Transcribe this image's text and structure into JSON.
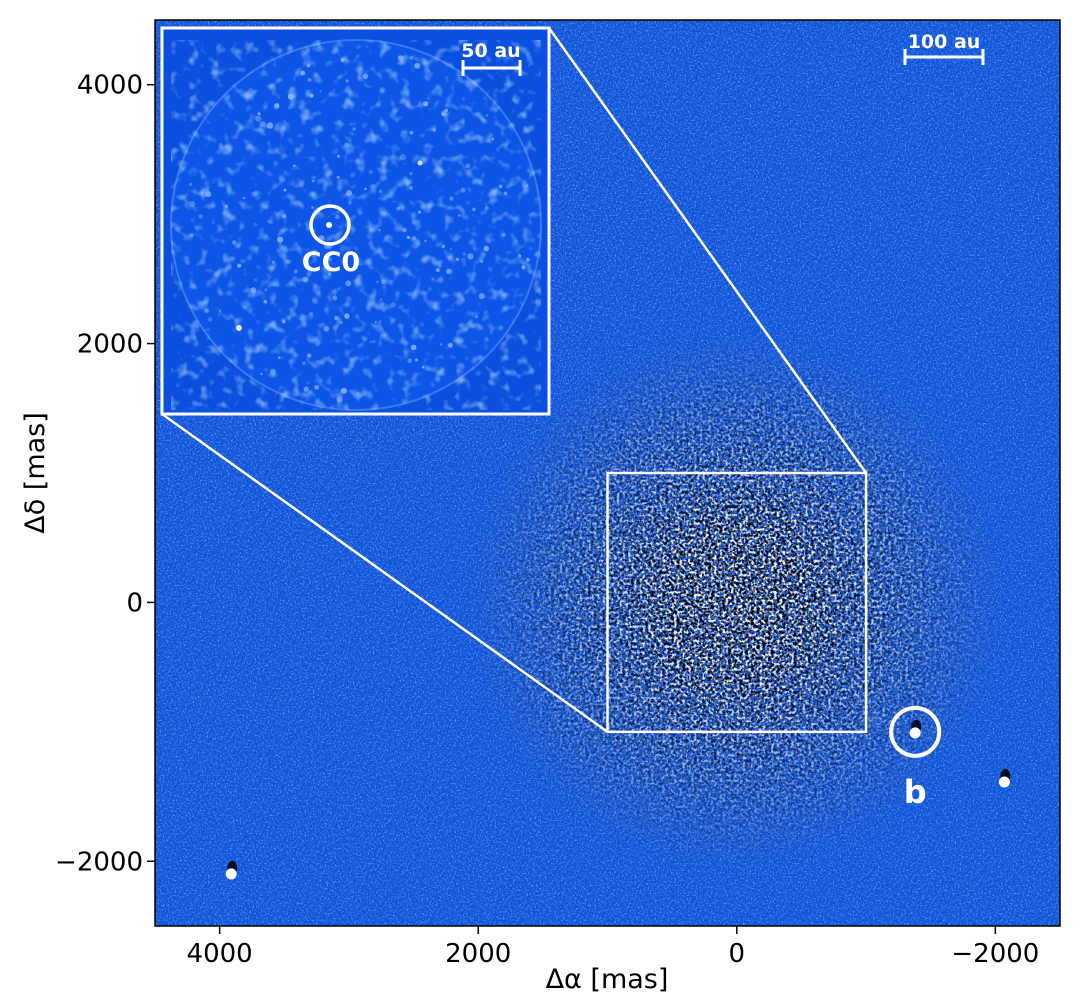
{
  "chart_data": {
    "type": "scatter",
    "title": "",
    "xlabel": "Δα [mas]",
    "ylabel": "Δδ [mas]",
    "xlim": [
      4500,
      -2500
    ],
    "ylim": [
      -2500,
      4500
    ],
    "xticks": [
      4000,
      2000,
      0,
      -2000
    ],
    "xtick_labels": [
      "4000",
      "2000",
      "0",
      "−2000"
    ],
    "yticks": [
      -2000,
      0,
      2000,
      4000
    ],
    "ytick_labels": [
      "−2000",
      "0",
      "2000",
      "4000"
    ],
    "grid": false,
    "background_color": "#0d4fd8",
    "sources": [
      {
        "label": "b",
        "x": -1380,
        "y": -1000,
        "circled": true
      },
      {
        "label": "",
        "x": -2070,
        "y": -1380,
        "circled": false
      },
      {
        "label": "",
        "x": 3910,
        "y": -2090,
        "circled": false
      }
    ],
    "zoom_box": {
      "x0": -1000,
      "x1": 1000,
      "y0": -1000,
      "y1": 1000
    },
    "scale_bar_main": {
      "label": "100 au"
    },
    "inset": {
      "scale_bar_label": "50 au",
      "candidate": {
        "label": "CC0"
      }
    }
  }
}
